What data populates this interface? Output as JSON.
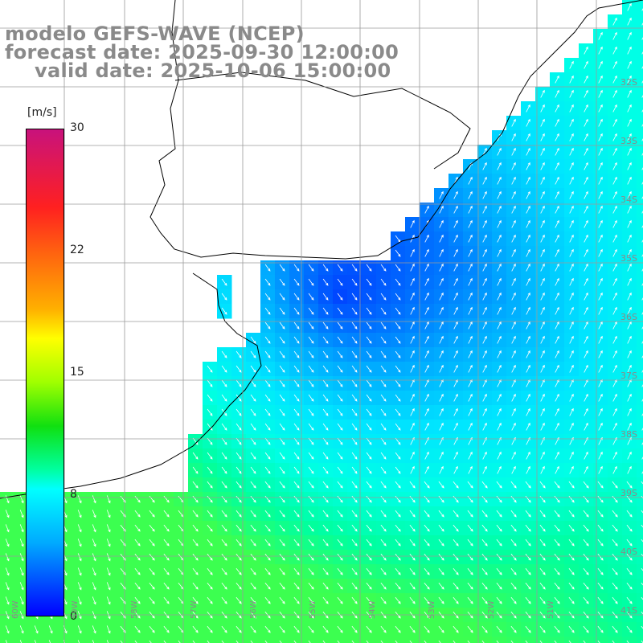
{
  "header": {
    "line1": "modelo GEFS-WAVE (NCEP)",
    "line2": "forecast date: 2025-09-30 12:00:00",
    "line3": "valid date: 2025-10-06 15:00:00"
  },
  "colorbar": {
    "unit": "[m/s]",
    "ticks": [
      "30",
      "22",
      "15",
      "8",
      "0"
    ]
  },
  "lat_labels": [
    "32S",
    "33S",
    "34S",
    "35S",
    "36S",
    "37S",
    "38S",
    "39S",
    "40S",
    "41S"
  ],
  "lon_labels": [
    "60W",
    "59W",
    "58W",
    "57W",
    "56W",
    "55W",
    "54W",
    "53W",
    "52W",
    "51W"
  ],
  "colors": {
    "land": "#ffffff",
    "grid": "#9a9a9a",
    "text": "#8a8a8a",
    "vector": "#ffffff"
  },
  "wind_scale": {
    "min": 0,
    "max": 30,
    "unit": "m/s"
  }
}
